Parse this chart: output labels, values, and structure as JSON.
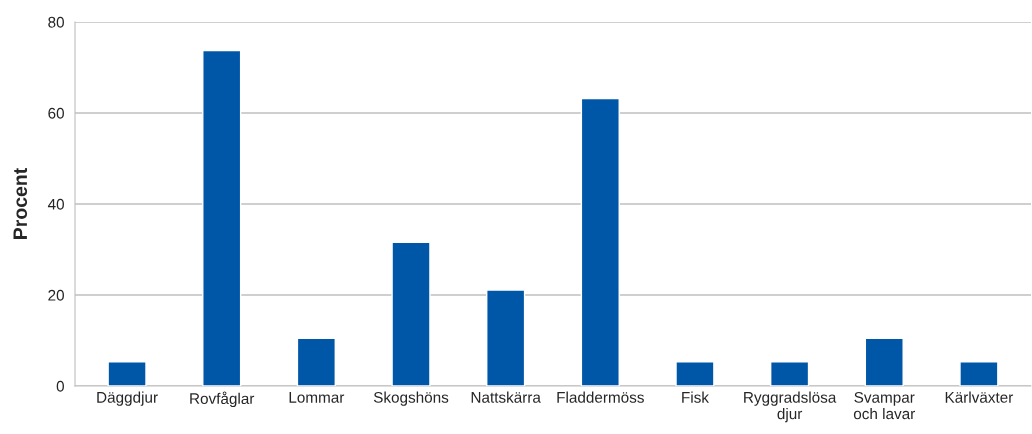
{
  "chart_data": {
    "type": "bar",
    "ylabel": "Procent",
    "categories": [
      "Däggdjur",
      "Rovfåglar",
      "Lommar",
      "Skogshöns",
      "Nattskärra",
      "Fladdermöss",
      "Fisk",
      "Ryggradslösa\ndjur",
      "Svampar\noch lavar",
      "Kärlväxter"
    ],
    "values": [
      5.3,
      73.7,
      10.5,
      31.6,
      21.1,
      63.2,
      5.3,
      5.3,
      10.5,
      5.3
    ],
    "color": "#0057a8",
    "ylim": [
      0,
      80
    ],
    "yticks": [
      0,
      20,
      40,
      60,
      80
    ],
    "grid": "y"
  }
}
